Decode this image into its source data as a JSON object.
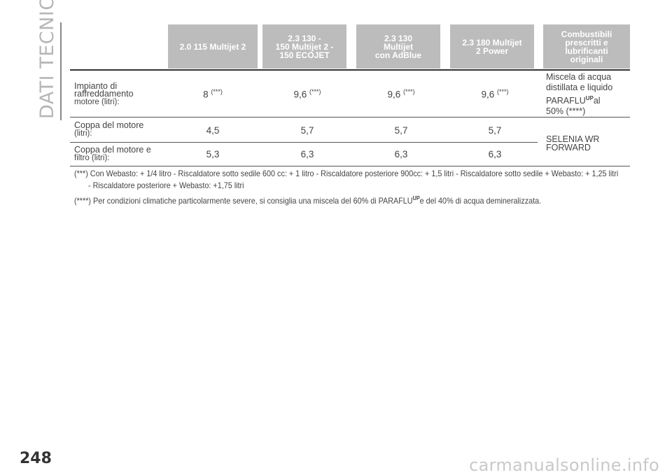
{
  "section_title": "DATI TECNICI",
  "page_number": "248",
  "watermark": "carmanualsonline.info",
  "table": {
    "headers": [
      "2.0 115 Multijet 2",
      "2.3 130 -\n150 Multijet 2 -\n150 ECOJET",
      "2.3 130\nMultijet\ncon AdBlue",
      "2.3 180 Multijet\n2 Power",
      "Combustibili\nprescritti e\nlubrificanti\noriginali"
    ],
    "rows": [
      {
        "label": "Impianto di\nraffreddamento",
        "label_sub": "motore (litri):",
        "values": [
          "8",
          "9,6",
          "9,6",
          "9,6"
        ],
        "value_note": "(***)"
      },
      {
        "label": "Coppa del motore",
        "label_sub": "(litri):",
        "values": [
          "4,5",
          "5,7",
          "5,7",
          "5,7"
        ]
      },
      {
        "label": "Coppa del motore e",
        "label_sub": "filtro (litri):",
        "values": [
          "5,3",
          "6,3",
          "6,3",
          "6,3"
        ]
      }
    ],
    "fuel_cooling": {
      "line1": "Miscela di acqua",
      "line2": "distillata e liquido",
      "brand": "PARAFLU",
      "brand_sup": "UP",
      "after_brand": "al",
      "line4": "50% (****)"
    },
    "fuel_oil": "SELENIA WR\nFORWARD"
  },
  "footnotes": {
    "note1_line1": "(***) Con Webasto: + 1/4 litro - Riscaldatore sotto sedile 600 cc: + 1 litro - Riscaldatore posteriore 900cc: + 1,5 litri - Riscaldatore sotto sedile + Webasto: + 1,25 litri",
    "note1_line2": "- Riscaldatore posteriore + Webasto: +1,75 litri",
    "note2_pre": "(****) Per condizioni climatiche particolarmente severe, si consiglia una miscela del 60% di PARAFLU",
    "note2_sup": "UP",
    "note2_post": "e del 40% di acqua demineralizzata."
  }
}
